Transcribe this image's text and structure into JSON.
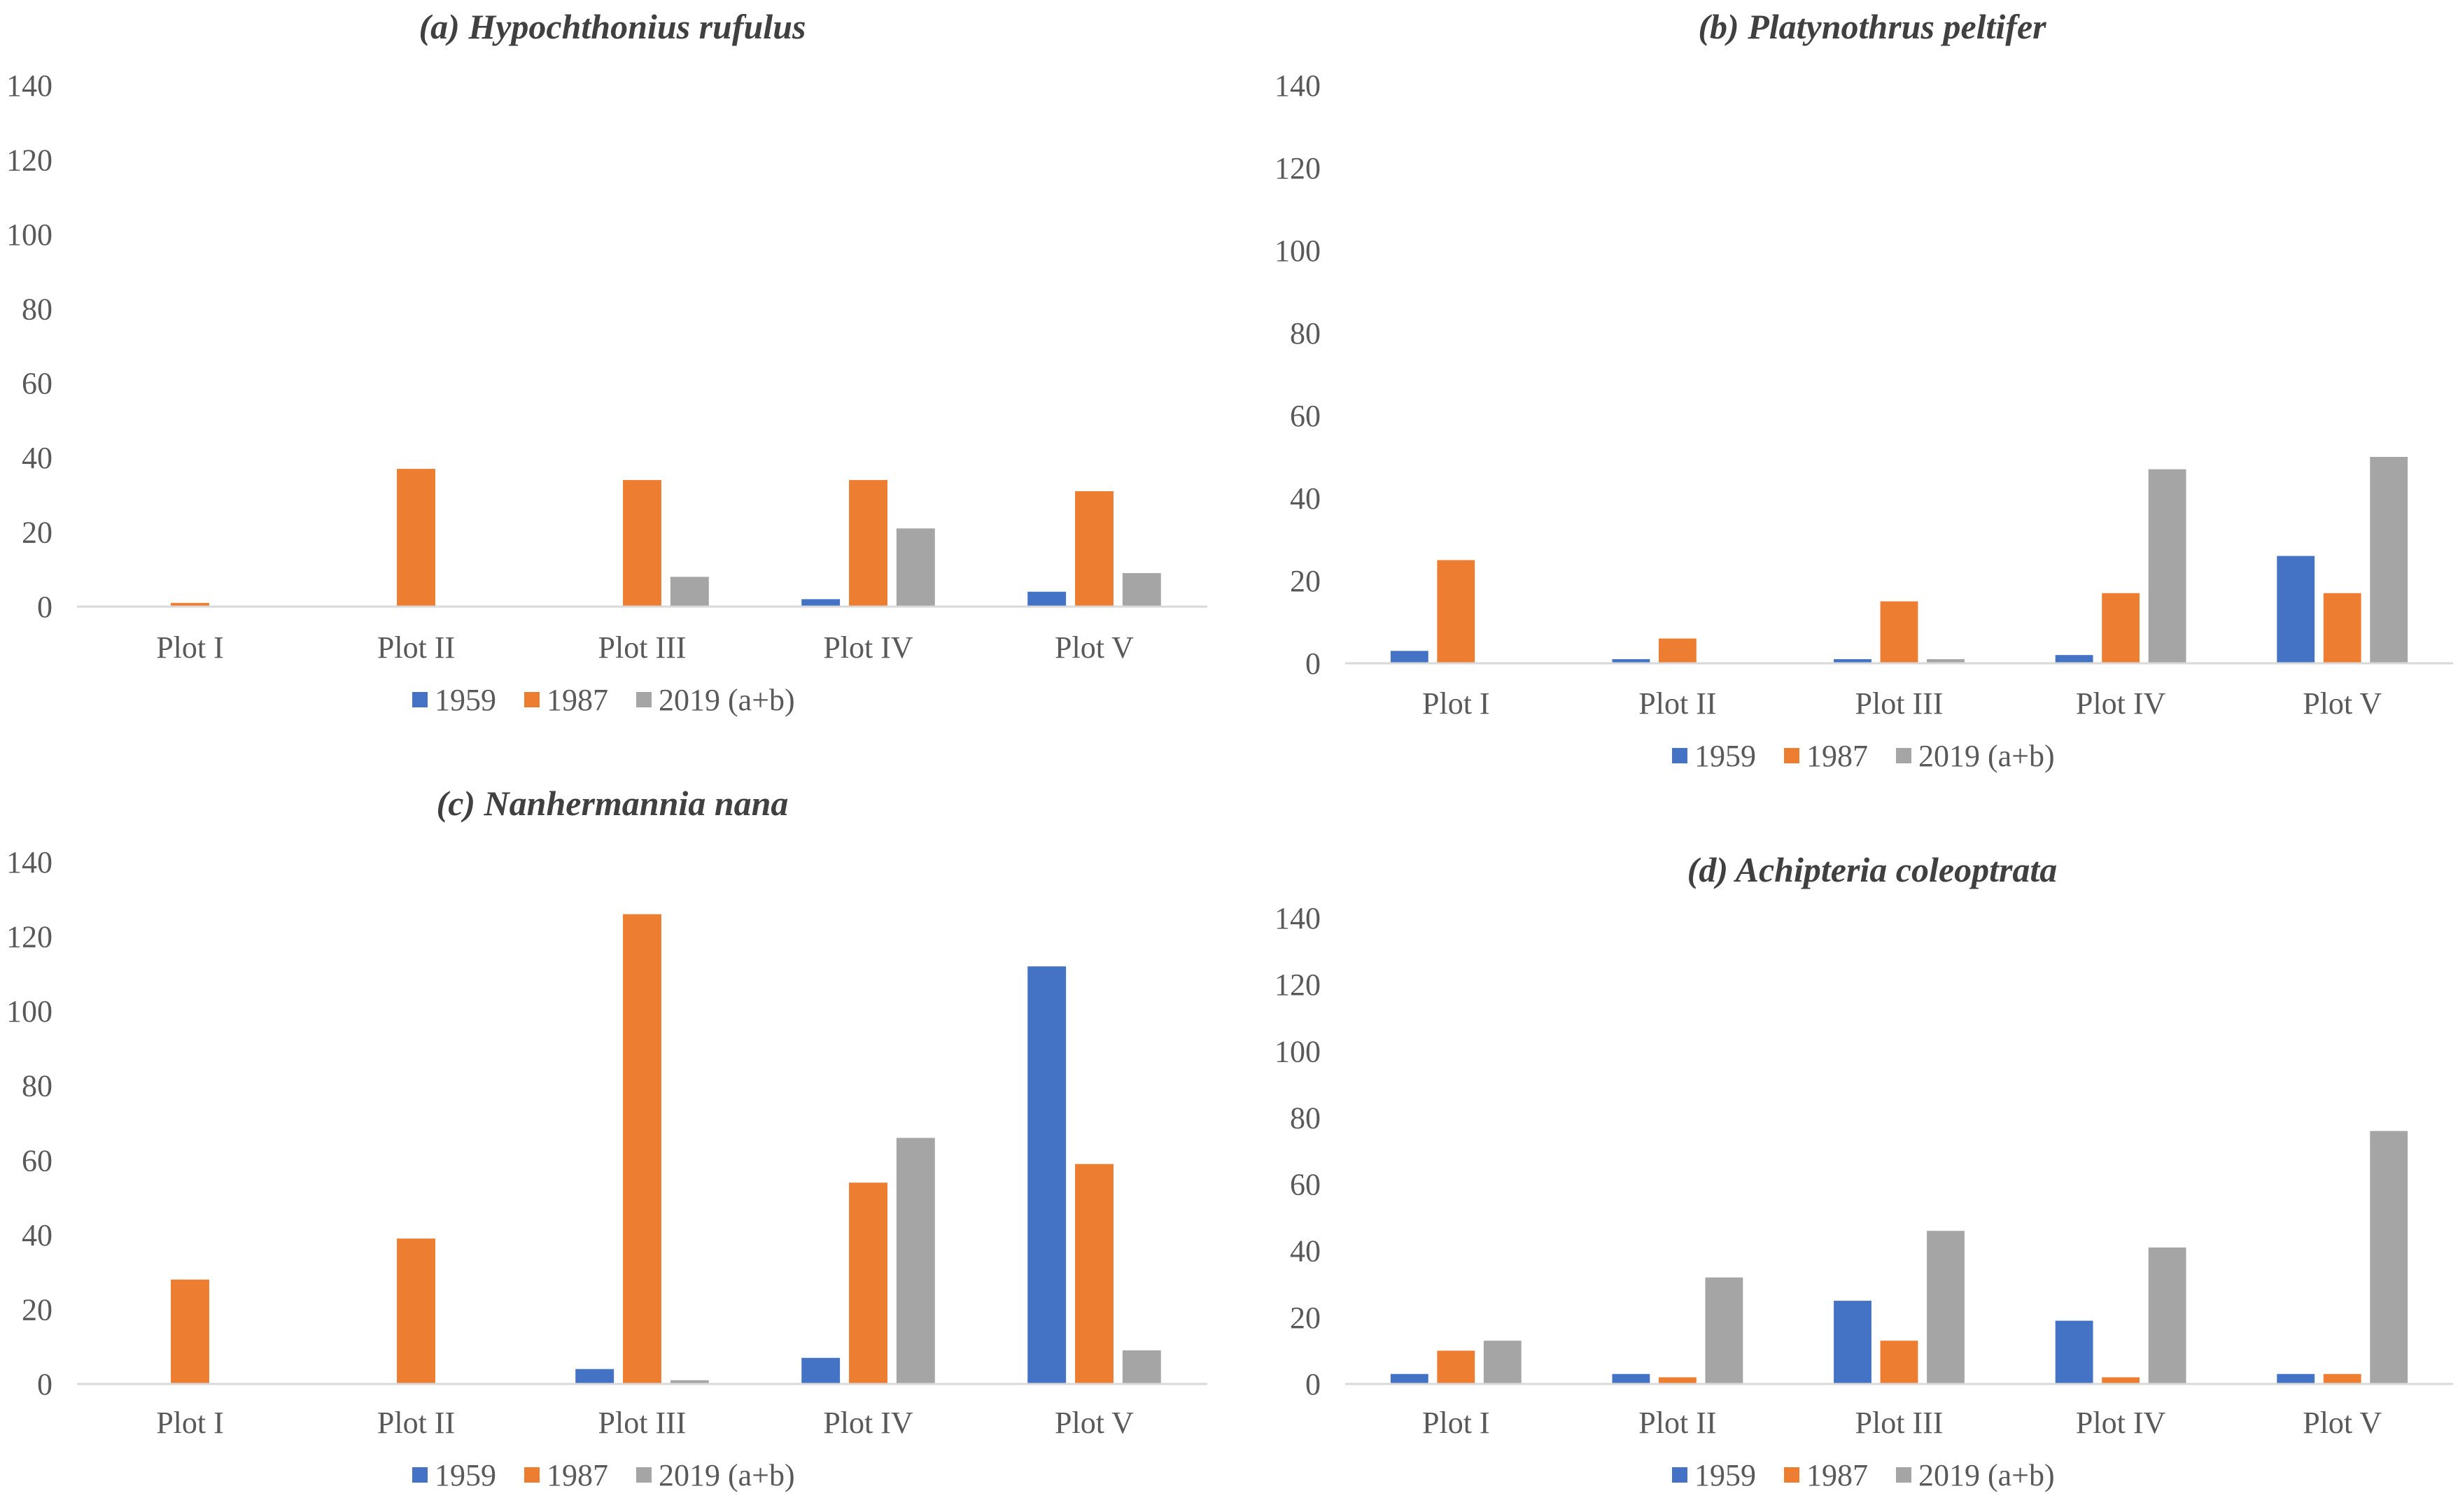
{
  "chart_data": [
    {
      "type": "bar",
      "title": "(a) Hypochthonius rufulus",
      "categories": [
        "Plot I",
        "Plot II",
        "Plot III",
        "Plot IV",
        "Plot V"
      ],
      "series": [
        {
          "name": "1959",
          "color": "#4472c4",
          "values": [
            0,
            0,
            0,
            2,
            4
          ]
        },
        {
          "name": "1987",
          "color": "#ed7d31",
          "values": [
            1,
            37,
            34,
            34,
            31
          ]
        },
        {
          "name": "2019 (a+b)",
          "color": "#a5a5a5",
          "values": [
            0,
            0,
            8,
            21,
            9
          ]
        }
      ],
      "yticks": [
        "0",
        "20",
        "40",
        "60",
        "80",
        "100",
        "120",
        "140"
      ],
      "ylim": [
        0,
        140
      ],
      "legend": "bottom"
    },
    {
      "type": "bar",
      "title": "(b) Platynothrus peltifer",
      "categories": [
        "Plot I",
        "Plot II",
        "Plot III",
        "Plot IV",
        "Plot V"
      ],
      "series": [
        {
          "name": "1959",
          "color": "#4472c4",
          "values": [
            3,
            1,
            1,
            2,
            26
          ]
        },
        {
          "name": "1987",
          "color": "#ed7d31",
          "values": [
            25,
            6,
            15,
            17,
            17
          ]
        },
        {
          "name": "2019 (a+b)",
          "color": "#a5a5a5",
          "values": [
            0,
            0,
            1,
            47,
            50
          ]
        }
      ],
      "yticks": [
        "0",
        "20",
        "40",
        "60",
        "80",
        "100",
        "120",
        "140"
      ],
      "ylim": [
        0,
        140
      ],
      "legend": "bottom"
    },
    {
      "type": "bar",
      "title": "(c) Nanhermannia nana",
      "categories": [
        "Plot I",
        "Plot II",
        "Plot III",
        "Plot IV",
        "Plot V"
      ],
      "series": [
        {
          "name": "1959",
          "color": "#4472c4",
          "values": [
            0,
            0,
            4,
            7,
            112
          ]
        },
        {
          "name": "1987",
          "color": "#ed7d31",
          "values": [
            28,
            39,
            126,
            54,
            59
          ]
        },
        {
          "name": "2019 (a+b)",
          "color": "#a5a5a5",
          "values": [
            0,
            0,
            1,
            66,
            9
          ]
        }
      ],
      "yticks": [
        "0",
        "20",
        "40",
        "60",
        "80",
        "100",
        "120",
        "140"
      ],
      "ylim": [
        0,
        140
      ],
      "legend": "bottom"
    },
    {
      "type": "bar",
      "title": "(d) Achipteria coleoptrata",
      "categories": [
        "Plot I",
        "Plot II",
        "Plot III",
        "Plot IV",
        "Plot V"
      ],
      "series": [
        {
          "name": "1959",
          "color": "#4472c4",
          "values": [
            3,
            3,
            25,
            19,
            3
          ]
        },
        {
          "name": "1987",
          "color": "#ed7d31",
          "values": [
            10,
            2,
            13,
            2,
            3
          ]
        },
        {
          "name": "2019 (a+b)",
          "color": "#a5a5a5",
          "values": [
            13,
            32,
            46,
            41,
            76
          ]
        }
      ],
      "yticks": [
        "0",
        "20",
        "40",
        "60",
        "80",
        "100",
        "120",
        "140"
      ],
      "ylim": [
        0,
        140
      ],
      "legend": "bottom"
    }
  ]
}
